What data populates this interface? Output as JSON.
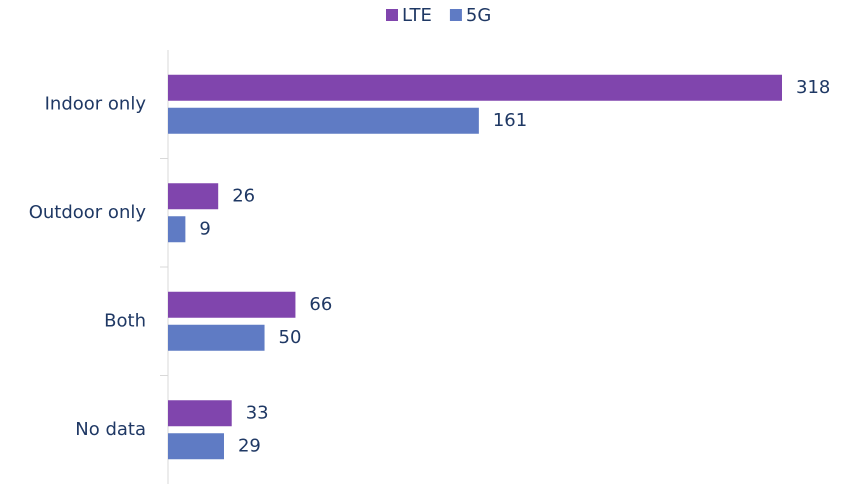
{
  "chart_data": {
    "type": "hbar",
    "categories": [
      "Indoor only",
      "Outdoor only",
      "Both",
      "No data"
    ],
    "series": [
      {
        "name": "LTE",
        "color": "#8045ad",
        "values": [
          318,
          26,
          66,
          33
        ]
      },
      {
        "name": "5G",
        "color": "#5f7bc4",
        "values": [
          161,
          9,
          50,
          29
        ]
      }
    ],
    "legend": "top"
  }
}
